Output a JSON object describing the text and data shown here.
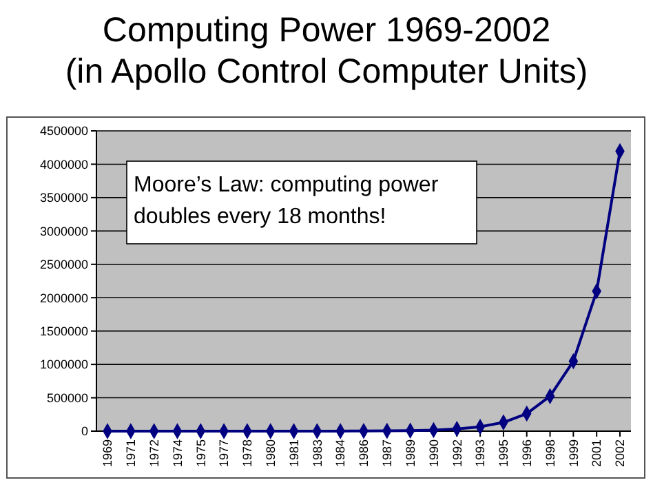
{
  "chart_data": {
    "type": "line",
    "title": "Computing Power 1969-2002\n(in Apollo Control Computer Units)",
    "categories": [
      "1969",
      "1971",
      "1972",
      "1974",
      "1975",
      "1977",
      "1978",
      "1980",
      "1981",
      "1983",
      "1984",
      "1986",
      "1987",
      "1989",
      "1990",
      "1992",
      "1993",
      "1995",
      "1996",
      "1998",
      "1999",
      "2001",
      "2002"
    ],
    "series": [
      {
        "color": "#000080",
        "values": [
          1,
          2,
          4,
          8,
          16,
          32,
          64,
          128,
          256,
          512,
          1024,
          2048,
          4096,
          8192,
          16384,
          32768,
          65536,
          131072,
          262144,
          524288,
          1048576,
          2097152,
          4194304
        ]
      }
    ],
    "ylim": [
      0,
      4500000
    ],
    "yticks": [
      0,
      500000,
      1000000,
      1500000,
      2000000,
      2500000,
      3000000,
      3500000,
      4000000,
      4500000
    ],
    "grid": "y",
    "marker": "diamond",
    "line_style": "solid",
    "annotations": [
      "Moore’s Law: computing power\ndoubles every 18 months!"
    ]
  }
}
